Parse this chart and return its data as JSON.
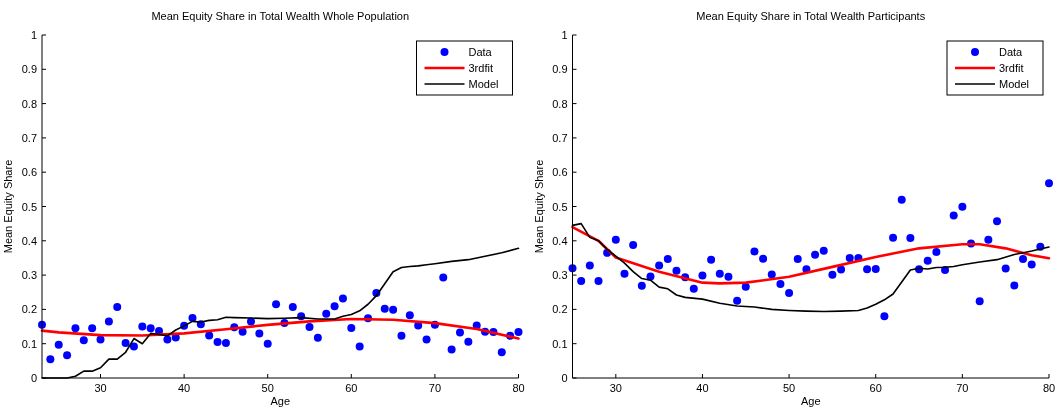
{
  "chart_data": [
    {
      "type": "scatter",
      "title": "Mean Equity Share in Total Wealth Whole Population",
      "xlabel": "Age",
      "ylabel": "Mean Equity Share",
      "xlim": [
        23,
        80
      ],
      "ylim": [
        0,
        1
      ],
      "xticks": [
        30,
        40,
        50,
        60,
        70,
        80
      ],
      "yticks": [
        0,
        0.1,
        0.2,
        0.3,
        0.4,
        0.5,
        0.6,
        0.7,
        0.8,
        0.9,
        1
      ],
      "legend": "top right",
      "x": [
        23,
        24,
        25,
        26,
        27,
        28,
        29,
        30,
        31,
        32,
        33,
        34,
        35,
        36,
        37,
        38,
        39,
        40,
        41,
        42,
        43,
        44,
        45,
        46,
        47,
        48,
        49,
        50,
        51,
        52,
        53,
        54,
        55,
        56,
        57,
        58,
        59,
        60,
        61,
        62,
        63,
        64,
        65,
        66,
        67,
        68,
        69,
        70,
        71,
        72,
        73,
        74,
        75,
        76,
        77,
        78,
        79,
        80
      ],
      "series": [
        {
          "name": "Data",
          "marker": "circle",
          "color": "#0000ff",
          "values": [
            0.155,
            0.055,
            0.097,
            0.066,
            0.145,
            0.11,
            0.145,
            0.112,
            0.165,
            0.207,
            0.102,
            0.092,
            0.15,
            0.145,
            0.137,
            0.112,
            0.118,
            0.152,
            0.175,
            0.157,
            0.124,
            0.105,
            0.102,
            0.148,
            0.135,
            0.165,
            0.13,
            0.1,
            0.215,
            0.16,
            0.207,
            0.18,
            0.149,
            0.117,
            0.187,
            0.209,
            0.232,
            0.146,
            0.092,
            0.174,
            0.248,
            0.202,
            0.199,
            0.123,
            0.183,
            0.153,
            0.112,
            0.155,
            0.293,
            0.083,
            0.133,
            0.106,
            0.153,
            0.135,
            0.134,
            0.075,
            0.123,
            0.134
          ]
        },
        {
          "name": "3rdfit",
          "type": "line",
          "color": "#ff0000",
          "x": [
            23,
            25,
            30,
            35,
            40,
            45,
            50,
            55,
            60,
            65,
            70,
            75,
            80
          ],
          "values": [
            0.138,
            0.133,
            0.125,
            0.124,
            0.13,
            0.142,
            0.155,
            0.165,
            0.172,
            0.17,
            0.16,
            0.143,
            0.115
          ]
        },
        {
          "name": "Model",
          "type": "line",
          "color": "#000000",
          "x": [
            23,
            26,
            27,
            28,
            29,
            30,
            31,
            32,
            33,
            34,
            35,
            36,
            37,
            38,
            39,
            40,
            41,
            42,
            43,
            44,
            45,
            46,
            48,
            50,
            52,
            54,
            56,
            58,
            59,
            60,
            61,
            62,
            63,
            64,
            65,
            66,
            67,
            68,
            69,
            70,
            72,
            74,
            76,
            78,
            80
          ],
          "values": [
            0,
            0,
            0.005,
            0.02,
            0.02,
            0.03,
            0.055,
            0.055,
            0.075,
            0.115,
            0.1,
            0.13,
            0.127,
            0.123,
            0.14,
            0.152,
            0.165,
            0.163,
            0.168,
            0.17,
            0.177,
            0.176,
            0.175,
            0.173,
            0.174,
            0.176,
            0.172,
            0.172,
            0.18,
            0.185,
            0.196,
            0.215,
            0.24,
            0.275,
            0.31,
            0.322,
            0.325,
            0.327,
            0.33,
            0.333,
            0.34,
            0.345,
            0.355,
            0.365,
            0.378
          ]
        }
      ]
    },
    {
      "type": "scatter",
      "title": "Mean Equity Share in Total Wealth Participants",
      "xlabel": "Age",
      "ylabel": "Mean Equity Share",
      "xlim": [
        25,
        80
      ],
      "ylim": [
        0,
        1
      ],
      "xticks": [
        30,
        40,
        50,
        60,
        70,
        80
      ],
      "yticks": [
        0,
        0.1,
        0.2,
        0.3,
        0.4,
        0.5,
        0.6,
        0.7,
        0.8,
        0.9,
        1
      ],
      "legend": "top right",
      "x": [
        25,
        26,
        27,
        28,
        29,
        30,
        31,
        32,
        33,
        34,
        35,
        36,
        37,
        38,
        39,
        40,
        41,
        42,
        43,
        44,
        45,
        46,
        47,
        48,
        49,
        50,
        51,
        52,
        53,
        54,
        55,
        56,
        57,
        58,
        59,
        60,
        61,
        62,
        63,
        64,
        65,
        66,
        67,
        68,
        69,
        70,
        71,
        72,
        73,
        74,
        75,
        76,
        77,
        78,
        79,
        80
      ],
      "series": [
        {
          "name": "Data",
          "marker": "circle",
          "color": "#0000ff",
          "values": [
            0.32,
            0.283,
            0.328,
            0.283,
            0.365,
            0.403,
            0.304,
            0.388,
            0.269,
            0.296,
            0.328,
            0.347,
            0.313,
            0.294,
            0.26,
            0.299,
            0.345,
            0.304,
            0.295,
            0.225,
            0.266,
            0.369,
            0.348,
            0.302,
            0.274,
            0.248,
            0.347,
            0.317,
            0.359,
            0.371,
            0.301,
            0.316,
            0.35,
            0.35,
            0.317,
            0.318,
            0.18,
            0.409,
            0.52,
            0.408,
            0.317,
            0.342,
            0.367,
            0.315,
            0.474,
            0.499,
            0.392,
            0.224,
            0.403,
            0.457,
            0.319,
            0.27,
            0.347,
            0.331,
            0.383,
            0.568
          ]
        },
        {
          "name": "3rdfit",
          "type": "line",
          "color": "#ff0000",
          "x": [
            25,
            28,
            30,
            35,
            40,
            42,
            45,
            50,
            55,
            60,
            65,
            70,
            72,
            75,
            78,
            80
          ],
          "values": [
            0.44,
            0.4,
            0.351,
            0.31,
            0.278,
            0.276,
            0.278,
            0.295,
            0.324,
            0.353,
            0.378,
            0.39,
            0.39,
            0.378,
            0.358,
            0.349
          ]
        },
        {
          "name": "Model",
          "type": "line",
          "color": "#000000",
          "x": [
            25,
            26,
            27,
            28,
            29,
            30,
            31,
            32,
            33,
            34,
            35,
            36,
            37,
            38,
            40,
            42,
            44,
            46,
            48,
            50,
            52,
            54,
            56,
            58,
            59,
            60,
            61,
            62,
            63,
            64,
            65,
            66,
            67,
            68,
            69,
            70,
            72,
            74,
            76,
            78,
            80
          ],
          "values": [
            0.445,
            0.45,
            0.41,
            0.4,
            0.375,
            0.355,
            0.335,
            0.31,
            0.29,
            0.285,
            0.265,
            0.26,
            0.242,
            0.235,
            0.23,
            0.218,
            0.21,
            0.207,
            0.2,
            0.197,
            0.195,
            0.194,
            0.195,
            0.197,
            0.204,
            0.215,
            0.228,
            0.245,
            0.28,
            0.315,
            0.32,
            0.318,
            0.322,
            0.323,
            0.325,
            0.33,
            0.338,
            0.345,
            0.36,
            0.37,
            0.382
          ]
        }
      ]
    }
  ]
}
